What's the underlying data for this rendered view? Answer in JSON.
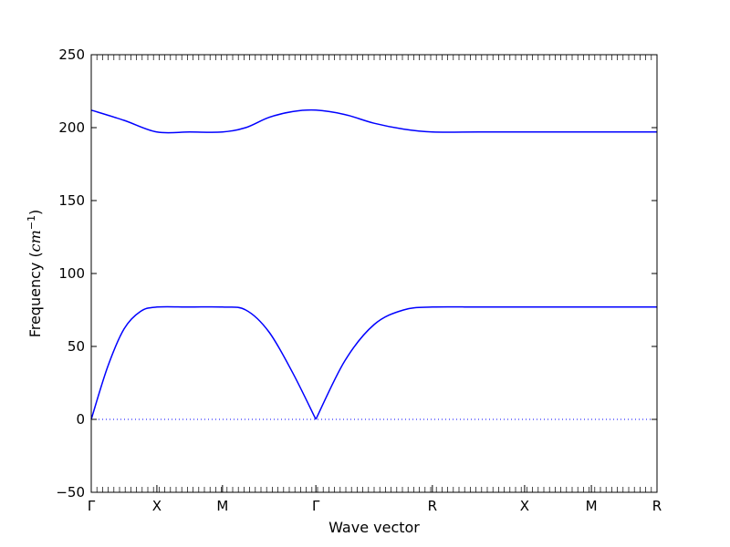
{
  "chart_data": {
    "type": "line",
    "xlabel": "Wave vector",
    "ylabel_text": "Frequency (",
    "ylabel_unit_base": "cm",
    "ylabel_unit_exp": "−1",
    "ylabel_close": ")",
    "ylim": [
      -50,
      250
    ],
    "yticks": [
      "−50",
      "0",
      "50",
      "100",
      "150",
      "200",
      "250"
    ],
    "ytick_values": [
      -50,
      0,
      50,
      100,
      150,
      200,
      250
    ],
    "xlim": [
      0,
      1
    ],
    "high_symmetry_points": [
      {
        "label": "Γ",
        "x": 0.0
      },
      {
        "label": "X",
        "x": 0.116
      },
      {
        "label": "M",
        "x": 0.232
      },
      {
        "label": "Γ",
        "x": 0.397
      },
      {
        "label": "R",
        "x": 0.603
      },
      {
        "label": "X",
        "x": 0.766
      },
      {
        "label": "M",
        "x": 0.884
      },
      {
        "label": "R",
        "x": 1.0
      }
    ],
    "series": [
      {
        "color": "#0000ff",
        "x": [
          0.0,
          0.058,
          0.116,
          0.174,
          0.232,
          0.273,
          0.314,
          0.356,
          0.397,
          0.448,
          0.5,
          0.552,
          0.603,
          0.685,
          0.766,
          0.825,
          0.884,
          1.0
        ],
        "values": [
          212,
          205,
          197,
          197,
          197,
          200,
          207,
          211,
          212,
          209,
          203,
          199,
          197,
          197,
          197,
          197,
          197,
          197
        ]
      },
      {
        "color": "#0000ff",
        "x": [
          0.0,
          0.029,
          0.058,
          0.087,
          0.116,
          0.174,
          0.232,
          0.273,
          0.314,
          0.356,
          0.397,
          0.448,
          0.5,
          0.552,
          0.603,
          0.685,
          0.766,
          0.825,
          0.884,
          1.0
        ],
        "values": [
          0,
          36,
          62,
          74,
          77,
          77,
          77,
          75,
          60,
          32,
          0,
          40,
          65,
          75,
          77,
          77,
          77,
          77,
          77,
          77
        ]
      }
    ],
    "zero_line": {
      "y": 0,
      "style": "dotted",
      "color": "#0000ff"
    }
  }
}
